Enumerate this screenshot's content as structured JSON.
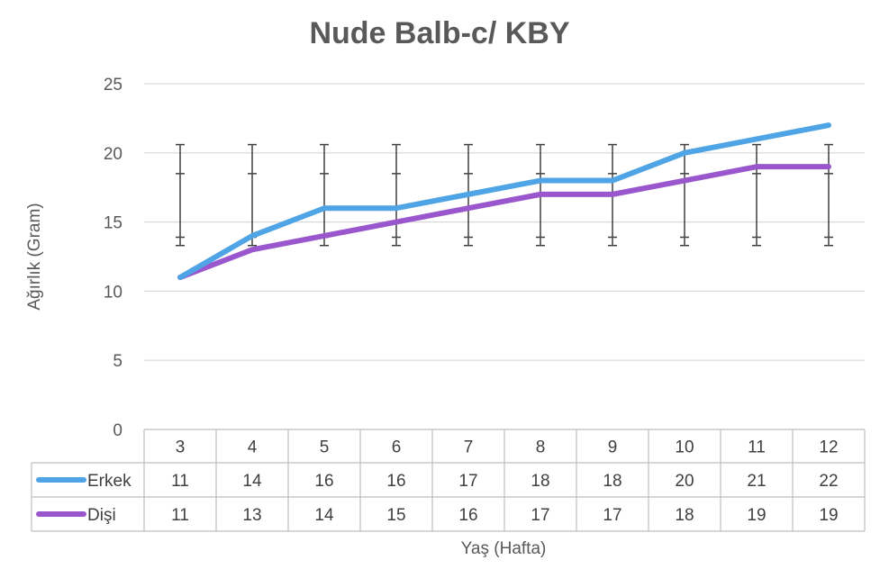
{
  "chart_data": {
    "type": "line",
    "title": "Nude Balb-c/ KBY",
    "xlabel": "Yaş (Hafta)",
    "ylabel": "Ağırlık (Gram)",
    "ylim": [
      0,
      25
    ],
    "yticks": [
      "0",
      "5",
      "10",
      "15",
      "20",
      "25"
    ],
    "grid": true,
    "legend_position": "data-table-left",
    "categories": [
      "3",
      "4",
      "5",
      "6",
      "7",
      "8",
      "9",
      "10",
      "11",
      "12"
    ],
    "series": [
      {
        "name": "Erkek",
        "color": "#4EA4E4",
        "values": [
          11,
          14,
          16,
          16,
          17,
          18,
          18,
          20,
          21,
          22
        ]
      },
      {
        "name": "Dişi",
        "color": "#9A57CD",
        "values": [
          11,
          13,
          14,
          15,
          16,
          17,
          17,
          18,
          19,
          19
        ]
      }
    ],
    "error_bars": {
      "color": "#404040",
      "outer_range": [
        13.3,
        20.6
      ],
      "inner_range": [
        13.9,
        18.5
      ],
      "categories": [
        "3",
        "4",
        "5",
        "6",
        "7",
        "8",
        "9",
        "10",
        "11",
        "12"
      ]
    }
  }
}
